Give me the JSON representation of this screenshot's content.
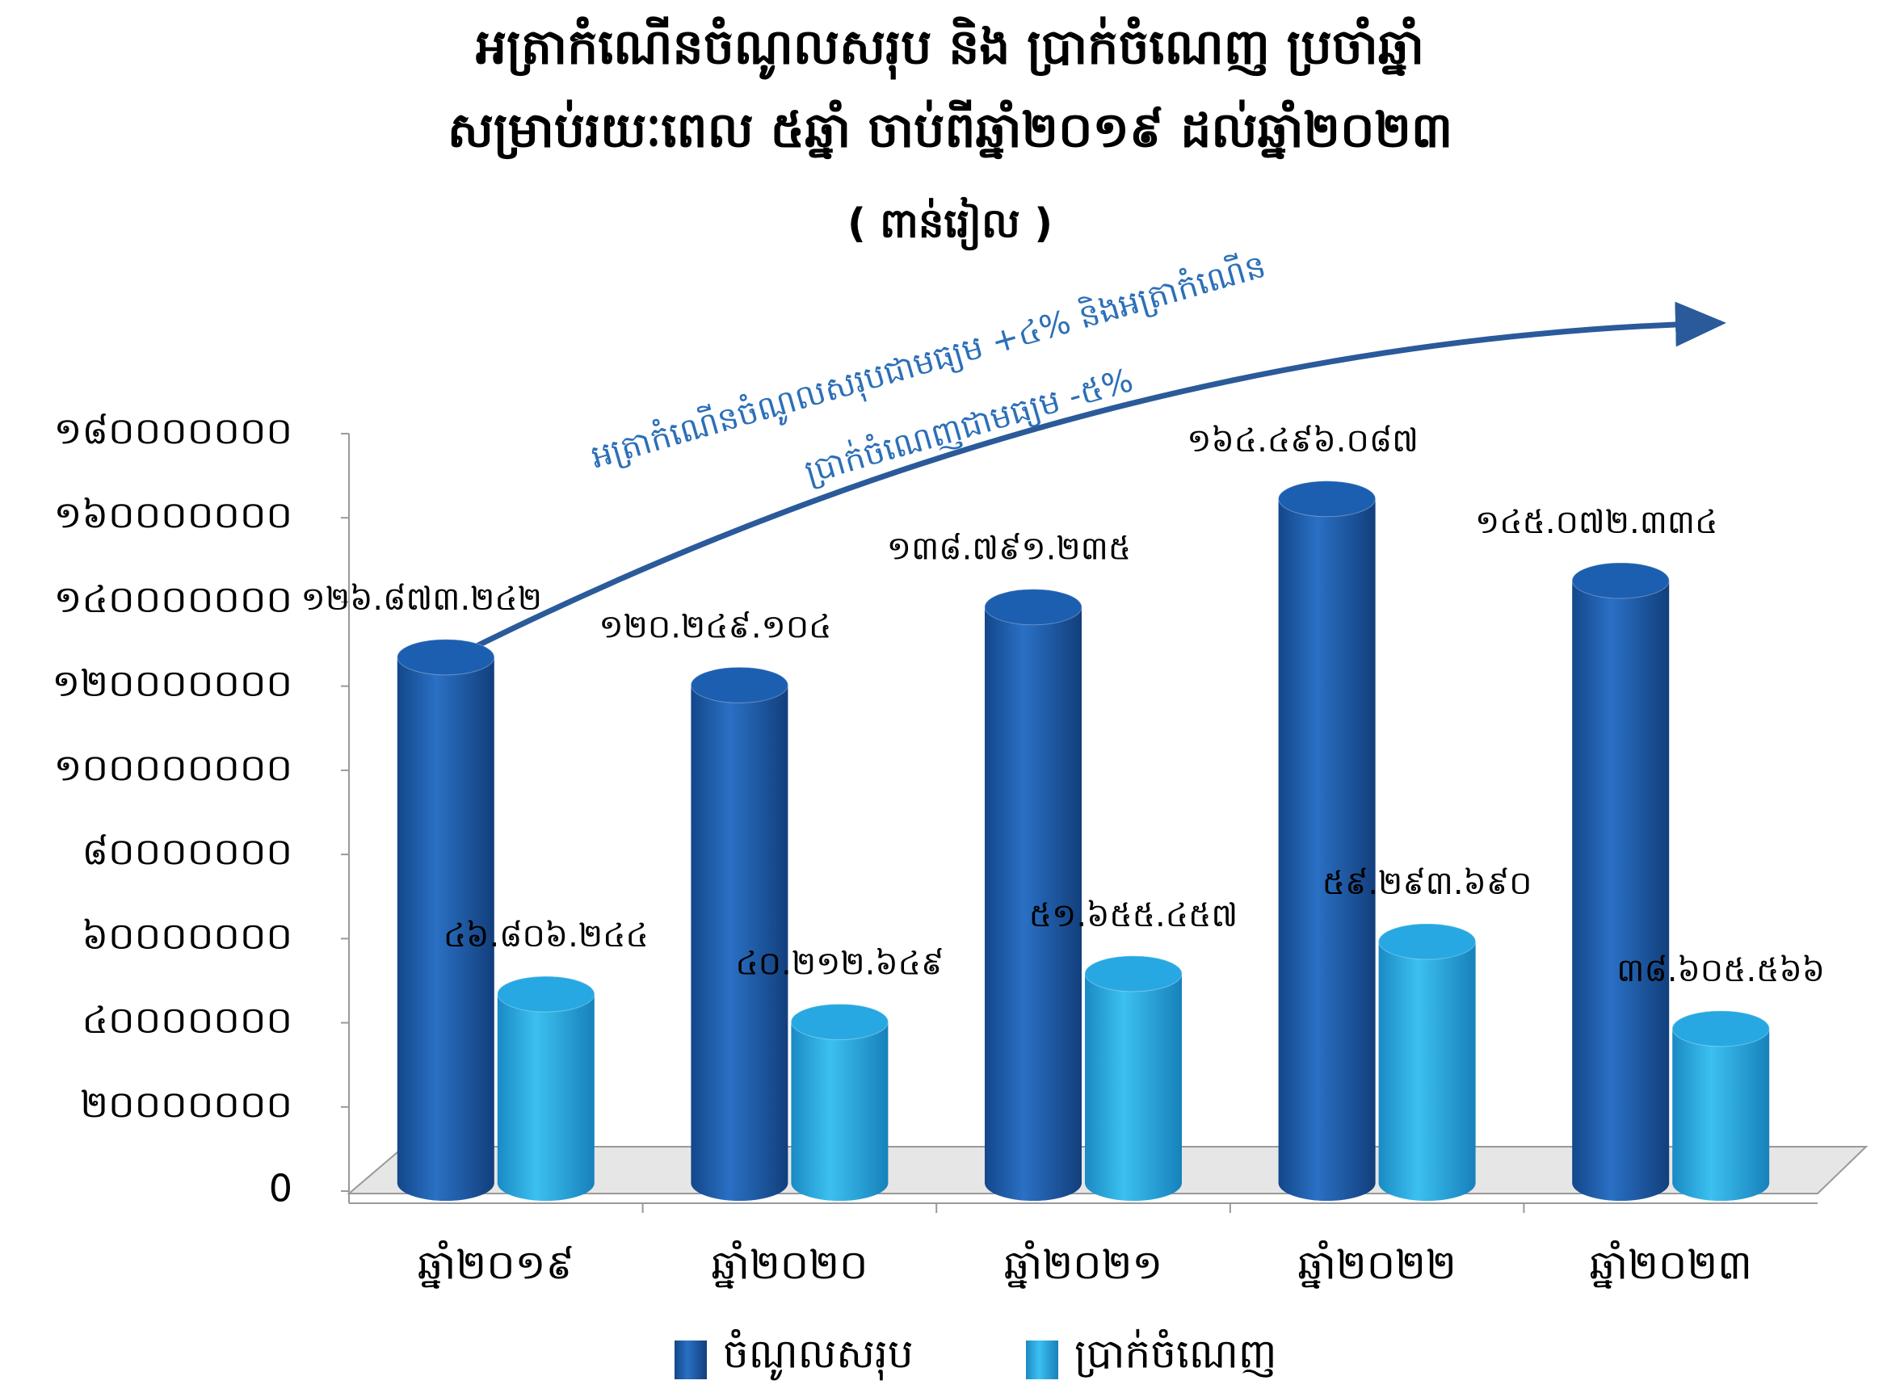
{
  "chart_data": {
    "type": "bar",
    "title": [
      "អត្រាកំណើនចំណូលសរុប និង ប្រាក់ចំណេញ ប្រចាំឆ្នាំ",
      "សម្រាប់រយៈពេល ៥ឆ្នាំ ចាប់ពីឆ្នាំ២០១៩ ដល់ឆ្នាំ២០២៣"
    ],
    "subtitle": "( ពាន់រៀល )",
    "annotation": [
      "អត្រាកំណើនចំណូលសរុបជាមធ្យម +៤% និងអត្រាកំណើន",
      "ប្រាក់ចំណេញជាមធ្យម -៥%"
    ],
    "categories": [
      "ឆ្នាំ២០១៩",
      "ឆ្នាំ២០២០",
      "ឆ្នាំ២០២១",
      "ឆ្នាំ២០២២",
      "ឆ្នាំ២០២៣"
    ],
    "series": [
      {
        "name": "ចំណូលសរុប",
        "color": "#1c5fb0",
        "values": [
          126873242,
          120249104,
          138791235,
          164496087,
          145072334
        ],
        "value_labels": [
          "១២៦.៨៧៣.២៤២",
          "១២០.២៤៩.១០៤",
          "១៣៨.៧៩១.២៣៥",
          "១៦៤.៤៩៦.០៨៧",
          "១៤៥.០៧២.៣៣៤"
        ]
      },
      {
        "name": "ប្រាក់ចំណេញ",
        "color": "#28a8e2",
        "values": [
          46806244,
          40212649,
          51655457,
          59293690,
          38605566
        ],
        "value_labels": [
          "៤៦.៨០៦.២៤៤",
          "៤០.២១២.៦៤៩",
          "៥១.៦៥៥.៤៥៧",
          "៥៩.២៩៣.៦៩០",
          "៣៨.៦០៥.៥៦៦"
        ]
      }
    ],
    "ylim": [
      0,
      180000000
    ],
    "yticks": [
      0,
      {
        "value": 20000000,
        "label": "២០០០០០០០"
      },
      {
        "value": 40000000,
        "label": "៤០០០០០០០"
      },
      {
        "value": 60000000,
        "label": "៦០០០០០០០"
      },
      {
        "value": 80000000,
        "label": "៨០០០០០០០"
      },
      {
        "value": 100000000,
        "label": "១០០០០០០០០"
      },
      {
        "value": 120000000,
        "label": "១២០០០០០០០"
      },
      {
        "value": 140000000,
        "label": "១៤០០០០០០០"
      },
      {
        "value": 160000000,
        "label": "១៦០០០០០០០"
      },
      {
        "value": 180000000,
        "label": "១៨០០០០០០០"
      }
    ],
    "grid": false
  }
}
